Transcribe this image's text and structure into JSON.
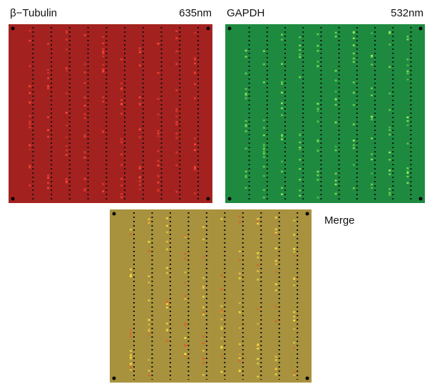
{
  "panels": [
    {
      "label": "β−Tubulin",
      "wavelength": "635nm"
    },
    {
      "label": "GAPDH",
      "wavelength": "532nm"
    },
    {
      "label": "Merge"
    }
  ]
}
